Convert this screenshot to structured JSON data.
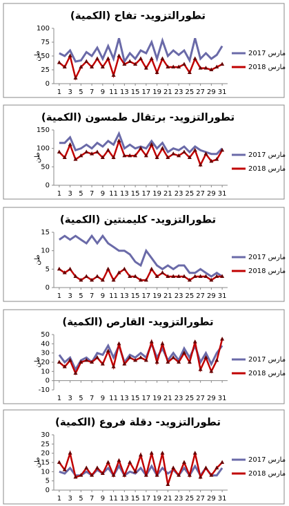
{
  "chart_data": [
    {
      "type": "line",
      "title": "تطورالتزويد- تفاح (الكمية)",
      "y_label": "طن",
      "x": [
        1,
        2,
        3,
        4,
        5,
        6,
        7,
        8,
        9,
        10,
        11,
        12,
        13,
        14,
        15,
        16,
        17,
        18,
        19,
        20,
        21,
        22,
        23,
        24,
        25,
        26,
        27,
        28,
        29,
        30,
        31
      ],
      "xlim": [
        0,
        32
      ],
      "xticks": [
        1,
        3,
        5,
        7,
        9,
        11,
        13,
        15,
        17,
        19,
        21,
        23,
        25,
        27,
        29,
        31
      ],
      "ylim": [
        0,
        100
      ],
      "yticks": [
        0,
        25,
        50,
        75,
        100
      ],
      "grid": false,
      "series": [
        {
          "name": "مارس 2017",
          "color": "#6a6aa8",
          "values": [
            55,
            50,
            60,
            40,
            42,
            57,
            50,
            65,
            45,
            68,
            45,
            82,
            40,
            55,
            45,
            60,
            55,
            75,
            45,
            78,
            50,
            60,
            52,
            60,
            42,
            82,
            45,
            55,
            45,
            52,
            68
          ]
        },
        {
          "name": "مارس 2018",
          "color": "#c00000",
          "values": [
            38,
            30,
            50,
            10,
            30,
            40,
            30,
            45,
            30,
            45,
            15,
            50,
            35,
            40,
            35,
            45,
            28,
            45,
            20,
            45,
            30,
            30,
            30,
            35,
            20,
            45,
            28,
            28,
            25,
            30,
            35
          ]
        }
      ]
    },
    {
      "type": "line",
      "title": "تطورالتزويد- برتقال طمسون (الكمية)",
      "y_label": "طن",
      "x": [
        1,
        2,
        3,
        4,
        5,
        6,
        7,
        8,
        9,
        10,
        11,
        12,
        13,
        14,
        15,
        16,
        17,
        18,
        19,
        20,
        21,
        22,
        23,
        24,
        25,
        26,
        27,
        28,
        29,
        30,
        31
      ],
      "xlim": [
        0,
        32
      ],
      "xticks": [
        1,
        3,
        5,
        7,
        9,
        11,
        13,
        15,
        17,
        19,
        21,
        23,
        25,
        27,
        29,
        31
      ],
      "ylim": [
        0,
        150
      ],
      "yticks": [
        0,
        50,
        100,
        150
      ],
      "grid": false,
      "series": [
        {
          "name": "مارس 2017",
          "color": "#6a6aa8",
          "values": [
            115,
            115,
            130,
            95,
            100,
            110,
            100,
            115,
            105,
            120,
            110,
            140,
            100,
            110,
            100,
            105,
            100,
            120,
            100,
            115,
            90,
            100,
            95,
            105,
            90,
            105,
            95,
            90,
            85,
            85,
            100
          ]
        },
        {
          "name": "مارس 2018",
          "color": "#c00000",
          "values": [
            90,
            75,
            110,
            70,
            80,
            90,
            85,
            90,
            75,
            95,
            75,
            120,
            80,
            80,
            80,
            100,
            80,
            110,
            75,
            100,
            75,
            85,
            80,
            90,
            75,
            95,
            55,
            85,
            65,
            70,
            95
          ]
        }
      ]
    },
    {
      "type": "line",
      "title": "تطورالتزويد- كليمنتين (الكمية)",
      "y_label": "طن",
      "x": [
        1,
        2,
        3,
        4,
        5,
        6,
        7,
        8,
        9,
        10,
        11,
        12,
        13,
        14,
        15,
        16,
        17,
        18,
        19,
        20,
        21,
        22,
        23,
        24,
        25,
        26,
        27,
        28,
        29,
        30,
        31
      ],
      "xlim": [
        0,
        32
      ],
      "xticks": [
        1,
        3,
        5,
        7,
        9,
        11,
        13,
        15,
        17,
        19,
        21,
        23,
        25,
        27,
        29,
        31
      ],
      "ylim": [
        0,
        15
      ],
      "yticks": [
        0,
        5,
        10,
        15
      ],
      "grid": false,
      "series": [
        {
          "name": "مارس 2017",
          "color": "#6a6aa8",
          "values": [
            13,
            14,
            13,
            14,
            13,
            12,
            14,
            12,
            14,
            12,
            11,
            10,
            10,
            9,
            7,
            6,
            10,
            8,
            6,
            5,
            6,
            5,
            6,
            6,
            4,
            4,
            5,
            4,
            3,
            4,
            3
          ]
        },
        {
          "name": "مارس 2018",
          "color": "#c00000",
          "values": [
            5,
            4,
            5,
            3,
            2,
            3,
            2,
            3,
            2,
            5,
            2,
            4,
            5,
            3,
            3,
            2,
            2,
            5,
            3,
            4,
            3,
            3,
            3,
            3,
            2,
            3,
            3,
            3,
            2,
            3,
            3
          ]
        }
      ]
    },
    {
      "type": "line",
      "title": "تطورالتزويد- القارص (الكمية)",
      "y_label": "طن",
      "x": [
        1,
        2,
        3,
        4,
        5,
        6,
        7,
        8,
        9,
        10,
        11,
        12,
        13,
        14,
        15,
        16,
        17,
        18,
        19,
        20,
        21,
        22,
        23,
        24,
        25,
        26,
        27,
        28,
        29,
        30,
        31
      ],
      "xlim": [
        0,
        32
      ],
      "xticks": [
        1,
        3,
        5,
        7,
        9,
        11,
        13,
        15,
        17,
        19,
        21,
        23,
        25,
        27,
        29,
        31
      ],
      "ylim": [
        -10,
        50
      ],
      "yticks": [
        -10,
        0,
        10,
        20,
        30,
        40,
        50
      ],
      "grid": false,
      "series": [
        {
          "name": "مارس 2017",
          "color": "#6a6aa8",
          "values": [
            28,
            20,
            25,
            12,
            22,
            25,
            20,
            30,
            28,
            38,
            25,
            38,
            20,
            28,
            25,
            30,
            25,
            40,
            25,
            35,
            22,
            30,
            22,
            35,
            25,
            38,
            20,
            30,
            18,
            30,
            38
          ]
        },
        {
          "name": "مارس 2018",
          "color": "#c00000",
          "values": [
            20,
            15,
            22,
            8,
            20,
            22,
            20,
            25,
            18,
            32,
            15,
            40,
            18,
            25,
            22,
            25,
            22,
            42,
            20,
            40,
            20,
            25,
            20,
            30,
            20,
            42,
            12,
            25,
            10,
            22,
            45
          ]
        }
      ]
    },
    {
      "type": "line",
      "title": "تطورالتزويد- دقلة فروع (الكمية)",
      "y_label": "طن",
      "x": [
        1,
        2,
        3,
        4,
        5,
        6,
        7,
        8,
        9,
        10,
        11,
        12,
        13,
        14,
        15,
        16,
        17,
        18,
        19,
        20,
        21,
        22,
        23,
        24,
        25,
        26,
        27,
        28,
        29,
        30,
        31
      ],
      "xlim": [
        0,
        32
      ],
      "xticks": [
        1,
        3,
        5,
        7,
        9,
        11,
        13,
        15,
        17,
        19,
        21,
        23,
        25,
        27,
        29,
        31
      ],
      "ylim": [
        0,
        30
      ],
      "yticks": [
        0,
        5,
        10,
        15,
        20,
        25,
        30
      ],
      "grid": false,
      "series": [
        {
          "name": "مارس 2017",
          "color": "#6a6aa8",
          "values": [
            10,
            9,
            12,
            8,
            8,
            10,
            8,
            11,
            9,
            12,
            8,
            13,
            8,
            10,
            9,
            12,
            8,
            13,
            8,
            12,
            9,
            11,
            8,
            12,
            8,
            13,
            8,
            12,
            8,
            8,
            12
          ]
        },
        {
          "name": "مارس 2018",
          "color": "#c00000",
          "values": [
            15,
            11,
            20,
            7,
            8,
            12,
            8,
            12,
            9,
            15,
            8,
            16,
            8,
            15,
            10,
            19,
            8,
            20,
            8,
            20,
            3,
            12,
            8,
            15,
            8,
            20,
            7,
            12,
            8,
            12,
            15
          ]
        }
      ]
    }
  ]
}
